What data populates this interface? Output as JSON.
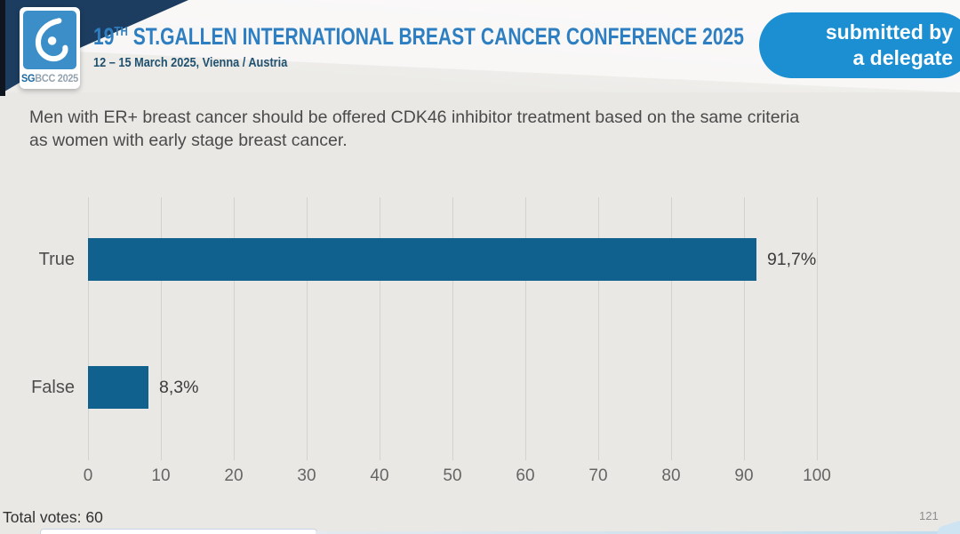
{
  "header": {
    "logo": {
      "brand_bold": "SG",
      "brand_rest": "BCC 2025"
    },
    "title_prefix": "19",
    "title_superscript": "TH",
    "title_rest": " ST.GALLEN INTERNATIONAL BREAST CANCER CONFERENCE 2025",
    "subtitle": "12 – 15 March 2025, Vienna / Austria",
    "badge_line1": "submitted by",
    "badge_line2": "a delegate"
  },
  "question": {
    "line1": "Men with ER+ breast cancer should be offered CDK46 inhibitor treatment based on the same criteria",
    "line2": "as women with early stage breast cancer."
  },
  "chart_data": {
    "type": "bar",
    "orientation": "horizontal",
    "categories": [
      "True",
      "False"
    ],
    "values": [
      91.7,
      8.3
    ],
    "value_labels": [
      "91,7%",
      "8,3%"
    ],
    "x_ticks": [
      0,
      10,
      20,
      30,
      40,
      50,
      60,
      70,
      80,
      90,
      100
    ],
    "xlim": [
      0,
      100
    ],
    "grid": true,
    "legend": "none",
    "bar_color": "#10618e"
  },
  "footer": {
    "total_votes": "Total votes: 60",
    "page_number": "121"
  },
  "colors": {
    "bar": "#10618e",
    "title_blue": "#2e7fc2",
    "subtitle_navy": "#20516f",
    "badge_blue": "#1b8fd2",
    "ribbon_navy": "#1d3d60",
    "logo_blue": "#3c8ec8",
    "background": "#eae8e5"
  }
}
